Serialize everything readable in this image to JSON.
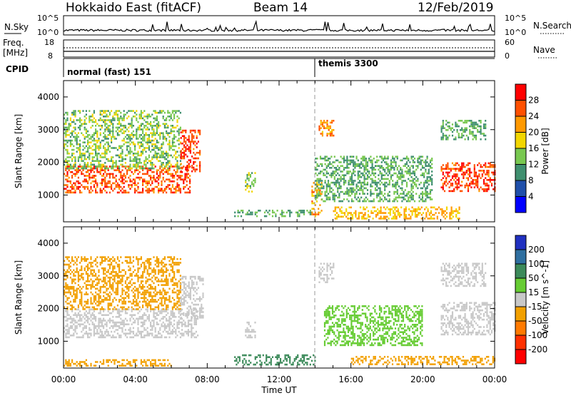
{
  "header": {
    "station": "Hokkaido East (fitACF)",
    "beam": "Beam 14",
    "date": "12/Feb/2019"
  },
  "noise_panel": {
    "left_label": "N.Sky",
    "right_label": "N.Search",
    "left_ticks": [
      "10^5",
      "10^0"
    ],
    "right_ticks": [
      "10^5",
      "10^0"
    ]
  },
  "freq_panel": {
    "left_label_top": "Freq.",
    "left_label_unit": "[MHz]",
    "right_label": "Nave",
    "left_ticks": [
      "18",
      "8"
    ],
    "right_ticks": [
      "60",
      "0"
    ]
  },
  "cpid_panel": {
    "label": "CPID",
    "programs": [
      {
        "name": "normal (fast) 151",
        "start_hour": 0
      },
      {
        "name": "themis 3300",
        "start_hour": 14
      }
    ]
  },
  "x_axis": {
    "label": "Time UT",
    "ticks": [
      "00:00",
      "04:00",
      "08:00",
      "12:00",
      "16:00",
      "20:00",
      "00:00"
    ],
    "range_hours": [
      0,
      24
    ]
  },
  "power_panel": {
    "ylabel": "Slant Range [km]",
    "yticks": [
      "1000",
      "2000",
      "3000",
      "4000"
    ],
    "colorbar_label": "Power [dB]",
    "colorbar_ticks": [
      "4",
      "8",
      "12",
      "16",
      "20",
      "24",
      "28"
    ],
    "colors": [
      "#0000ff",
      "#1f4faa",
      "#3f8f6f",
      "#78c850",
      "#f2d600",
      "#ff9900",
      "#ff5000",
      "#ff0000"
    ]
  },
  "velocity_panel": {
    "ylabel": "Slant Range [km]",
    "yticks": [
      "1000",
      "2000",
      "3000",
      "4000"
    ],
    "colorbar_label": "Velocity [m s^-1]",
    "colorbar_ticks": [
      "200",
      "100",
      "50",
      "15",
      "-15",
      "-50",
      "-100",
      "-200"
    ],
    "colors": [
      "#2030c0",
      "#2f6fa0",
      "#3c8a5a",
      "#66cc33",
      "#c8c8c8",
      "#f2a000",
      "#ff7a00",
      "#ff3000",
      "#ff0000"
    ]
  },
  "chart_data": [
    {
      "type": "heatmap",
      "name": "power",
      "x_range_hours": [
        0,
        24
      ],
      "y_range_km": [
        180,
        4500
      ],
      "regions": [
        {
          "t0": 0.0,
          "t1": 7.0,
          "r0": 1050,
          "r1": 1900,
          "power": 26
        },
        {
          "t0": 0.0,
          "t1": 6.5,
          "r0": 1800,
          "r1": 3600,
          "power": 14
        },
        {
          "t0": 6.5,
          "t1": 7.6,
          "r0": 1700,
          "r1": 3000,
          "power": 27
        },
        {
          "t0": 9.5,
          "t1": 13.8,
          "r0": 350,
          "r1": 550,
          "power": 12
        },
        {
          "t0": 10.1,
          "t1": 10.7,
          "r0": 1100,
          "r1": 1700,
          "power": 14
        },
        {
          "t0": 13.8,
          "t1": 14.4,
          "r0": 350,
          "r1": 1400,
          "power": 22
        },
        {
          "t0": 14.2,
          "t1": 15.0,
          "r0": 2800,
          "r1": 3300,
          "power": 22
        },
        {
          "t0": 14.0,
          "t1": 20.5,
          "r0": 800,
          "r1": 2200,
          "power": 12
        },
        {
          "t0": 15.0,
          "t1": 22.0,
          "r0": 300,
          "r1": 650,
          "power": 20
        },
        {
          "t0": 21.0,
          "t1": 24.0,
          "r0": 1100,
          "r1": 2000,
          "power": 27
        },
        {
          "t0": 21.0,
          "t1": 23.5,
          "r0": 2700,
          "r1": 3300,
          "power": 12
        }
      ]
    },
    {
      "type": "heatmap",
      "name": "velocity",
      "x_range_hours": [
        0,
        24
      ],
      "y_range_km": [
        180,
        4500
      ],
      "regions": [
        {
          "t0": 0.0,
          "t1": 7.5,
          "r0": 1100,
          "r1": 2000,
          "velocity": 0
        },
        {
          "t0": 0.0,
          "t1": 6.5,
          "r0": 2000,
          "r1": 3600,
          "velocity": -30
        },
        {
          "t0": 6.5,
          "t1": 7.8,
          "r0": 1700,
          "r1": 3000,
          "velocity": 0
        },
        {
          "t0": 9.5,
          "t1": 14.0,
          "r0": 300,
          "r1": 600,
          "velocity": 60
        },
        {
          "t0": 10.1,
          "t1": 10.7,
          "r0": 1100,
          "r1": 1600,
          "velocity": 0
        },
        {
          "t0": 14.2,
          "t1": 15.0,
          "r0": 2800,
          "r1": 3400,
          "velocity": 0
        },
        {
          "t0": 14.5,
          "t1": 20.0,
          "r0": 900,
          "r1": 2100,
          "velocity": 40
        },
        {
          "t0": 16.0,
          "t1": 24.0,
          "r0": 300,
          "r1": 550,
          "velocity": -40
        },
        {
          "t0": 21.0,
          "t1": 24.0,
          "r0": 1200,
          "r1": 2200,
          "velocity": 0
        },
        {
          "t0": 21.0,
          "t1": 23.5,
          "r0": 2700,
          "r1": 3400,
          "velocity": 0
        },
        {
          "t0": 0.0,
          "t1": 6.0,
          "r0": 250,
          "r1": 450,
          "velocity": -30
        }
      ]
    }
  ]
}
